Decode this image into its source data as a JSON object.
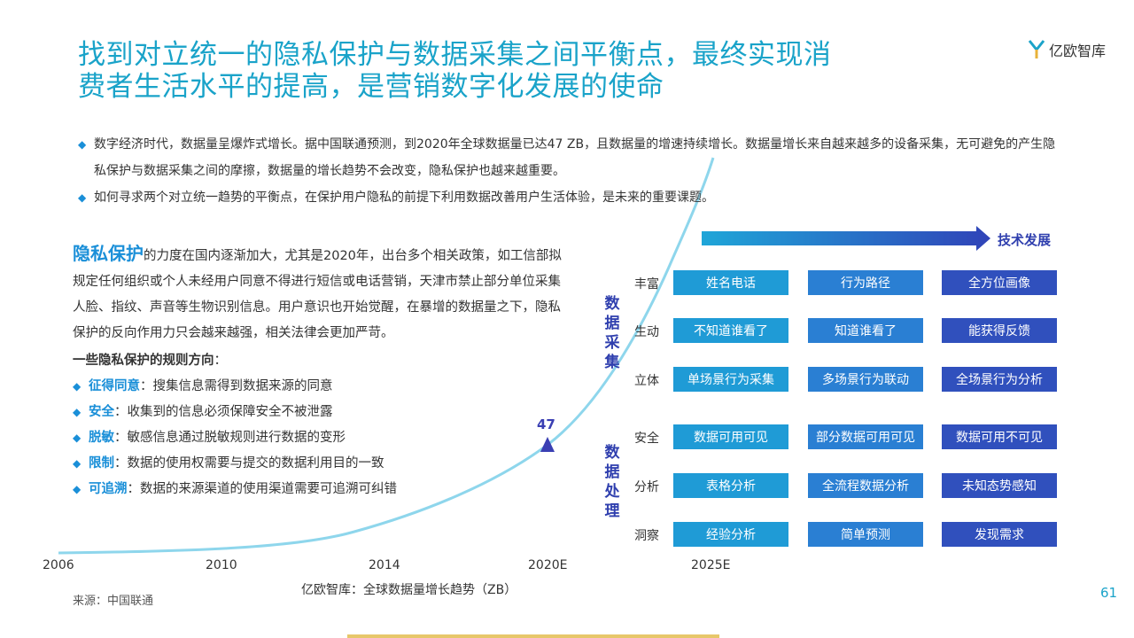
{
  "header": {
    "title_line1": "找到对立统一的隐私保护与数据采集之间平衡点，最终实现消",
    "title_line2": "费者生活水平的提高，是营销数字化发展的使命",
    "logo_text": "亿欧智库"
  },
  "bullets": [
    {
      "text": "数字经济时代，数据量呈爆炸式增长。据中国联通预测，到2020年全球数据量已达47 ZB，且数据量的增速持续增长。数据量增长来自越来越多的设备采集，无可避免的产生隐私保护与数据采集之间的摩擦，数据量的增长趋势不会改变，隐私保护也越来越重要。"
    },
    {
      "text": "如何寻求两个对立统一趋势的平衡点，在保护用户隐私的前提下利用数据改善用户生活体验，是未来的重要课题。"
    }
  ],
  "privacy": {
    "keyword": "隐私保护",
    "paragraph": "的力度在国内逐渐加大，尤其是2020年，出台多个相关政策，如工信部拟规定任何组织或个人未经用户同意不得进行短信或电话营销，天津市禁止部分单位采集人脸、指纹、声音等生物识别信息。用户意识也开始觉醒，在暴增的数据量之下，隐私保护的反向作用力只会越来越强，相关法律会更加严苛。",
    "rules_heading": "一些隐私保护的规则方向",
    "rules_colon": "：",
    "rules": [
      {
        "key": "征得同意",
        "desc": "：搜集信息需得到数据来源的同意"
      },
      {
        "key": "安全",
        "desc": "：收集到的信息必须保障安全不被泄露"
      },
      {
        "key": "脱敏",
        "desc": "：敏感信息通过脱敏规则进行数据的变形"
      },
      {
        "key": "限制",
        "desc": "：数据的使用权需要与提交的数据利用目的一致"
      },
      {
        "key": "可追溯",
        "desc": "：数据的来源渠道的使用渠道需要可追溯可纠错"
      }
    ]
  },
  "chart_data": {
    "type": "line",
    "title": "亿欧智库：全球数据量增长趋势（ZB）",
    "x_ticks": [
      "2006",
      "2010",
      "2014",
      "2020E",
      "2025E"
    ],
    "annotated_point": {
      "x": "2020E",
      "value": "47"
    }
  },
  "source": "来源：中国联通",
  "page_number": "61",
  "tech": {
    "label": "技术发展",
    "section_collect": "数据采集",
    "section_process": "数据处理",
    "rows": [
      {
        "label": "丰富",
        "cells": [
          "姓名电话",
          "行为路径",
          "全方位画像"
        ]
      },
      {
        "label": "生动",
        "cells": [
          "不知道谁看了",
          "知道谁看了",
          "能获得反馈"
        ]
      },
      {
        "label": "立体",
        "cells": [
          "单场景行为采集",
          "多场景行为联动",
          "全场景行为分析"
        ]
      },
      {
        "label": "安全",
        "cells": [
          "数据可用可见",
          "部分数据可用可见",
          "数据可用不可见"
        ]
      },
      {
        "label": "分析",
        "cells": [
          "表格分析",
          "全流程数据分析",
          "未知态势感知"
        ]
      },
      {
        "label": "洞察",
        "cells": [
          "经验分析",
          "简单预测",
          "发现需求"
        ]
      }
    ]
  },
  "colors": {
    "accent": "#1aa3c9",
    "blue": "#1f9bd6",
    "deep": "#3050bd"
  }
}
